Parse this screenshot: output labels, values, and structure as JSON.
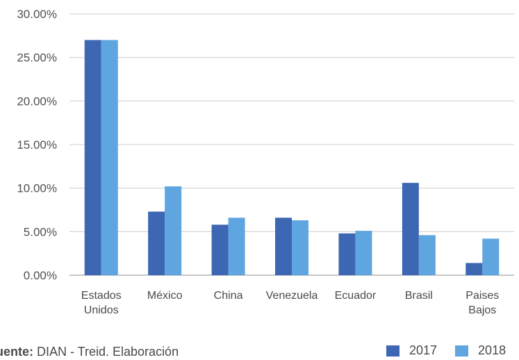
{
  "chart_data": {
    "type": "bar",
    "categories": [
      [
        "Estados",
        "Unidos"
      ],
      [
        "México"
      ],
      [
        "China"
      ],
      [
        "Venezuela"
      ],
      [
        "Ecuador"
      ],
      [
        "Brasil"
      ],
      [
        "Paises",
        "Bajos"
      ]
    ],
    "series": [
      {
        "name": "2017",
        "color": "#3d66b3",
        "values": [
          27.0,
          7.3,
          5.8,
          6.6,
          4.8,
          10.6,
          1.4
        ]
      },
      {
        "name": "2018",
        "color": "#5fa5df",
        "values": [
          27.0,
          10.2,
          6.6,
          6.3,
          5.1,
          4.6,
          4.2
        ]
      }
    ],
    "yticks": [
      "0.00%",
      "5.00%",
      "10.00%",
      "15.00%",
      "20.00%",
      "25.00%",
      "30.00%"
    ],
    "ylim": [
      0,
      30
    ],
    "grid": true,
    "legend_position": "bottom-right"
  },
  "source": {
    "prefix": "uente:",
    "text": " DIAN - Treid. Elaboración"
  }
}
